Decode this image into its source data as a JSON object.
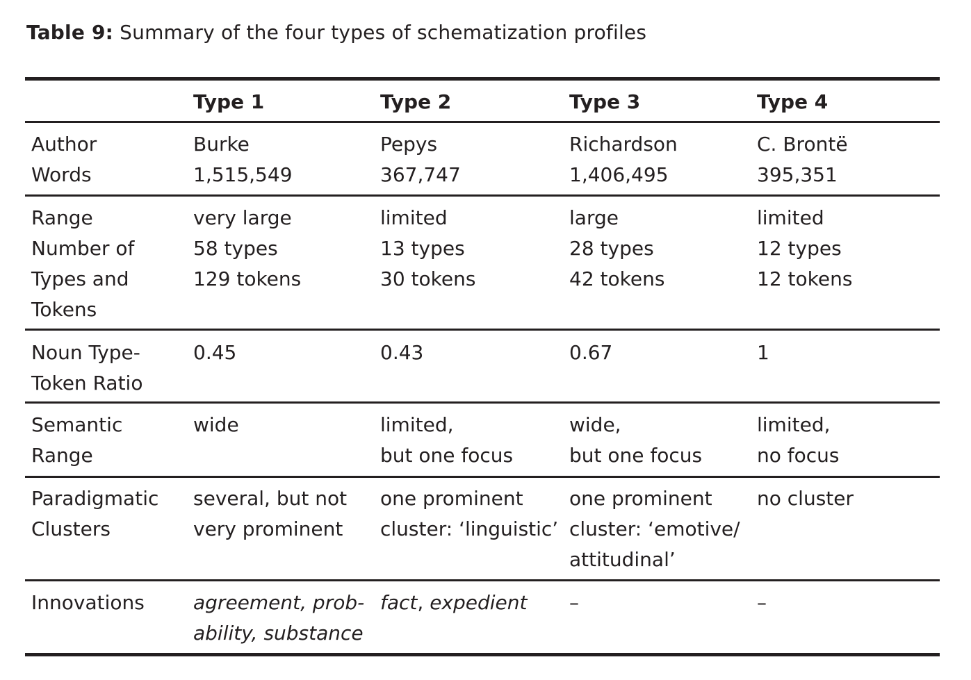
{
  "caption": {
    "label": "Table 9:",
    "text": "Summary of the four types of schematization profiles"
  },
  "headers": [
    "Type 1",
    "Type 2",
    "Type 3",
    "Type 4"
  ],
  "rows": {
    "author_words": {
      "label": [
        "Author",
        "Words"
      ],
      "cells": [
        [
          "Burke",
          "1,515,549"
        ],
        [
          "Pepys",
          "367,747"
        ],
        [
          "Richardson",
          "1,406,495"
        ],
        [
          "C. Brontë",
          "395,351"
        ]
      ]
    },
    "range": {
      "label": [
        "Range",
        "Number of",
        "Types and",
        "Tokens"
      ],
      "cells": [
        [
          "very large",
          "58 types",
          "129 tokens"
        ],
        [
          "limited",
          "13 types",
          "30 tokens"
        ],
        [
          "large",
          "28 types",
          "42 tokens"
        ],
        [
          "limited",
          "12 types",
          "12 tokens"
        ]
      ]
    },
    "ratio": {
      "label": [
        "Noun Type-",
        "Token Ratio"
      ],
      "cells": [
        [
          "0.45"
        ],
        [
          "0.43"
        ],
        [
          "0.67"
        ],
        [
          "1"
        ]
      ]
    },
    "semantic": {
      "label": [
        "Semantic",
        "Range"
      ],
      "cells": [
        [
          "wide"
        ],
        [
          "limited,",
          "but one focus"
        ],
        [
          "wide,",
          "but one focus"
        ],
        [
          "limited,",
          "no focus"
        ]
      ]
    },
    "clusters": {
      "label": [
        "Paradigmatic",
        "Clusters"
      ],
      "cells": [
        [
          "several, but not",
          "very prominent"
        ],
        [
          "one prominent",
          "cluster: ‘linguistic’"
        ],
        [
          "one prominent",
          "cluster: ‘emotive/",
          "attitudinal’"
        ],
        [
          "no cluster"
        ]
      ]
    },
    "innovations": {
      "label": [
        "Innovations"
      ],
      "cells": [
        [
          "agreement, prob-",
          "ability, substance"
        ],
        {
          "w1": "fact",
          "sep": ", ",
          "w2": "expedient"
        },
        [
          "–"
        ],
        [
          "–"
        ]
      ]
    }
  }
}
